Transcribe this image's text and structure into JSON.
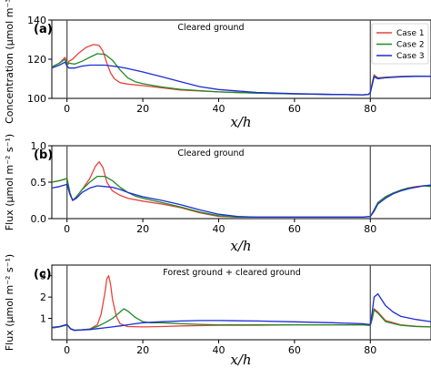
{
  "chart_data": [
    {
      "type": "line",
      "panel_label": "(a)",
      "annotation": "Cleared ground",
      "ylabel": "Concentration (μmol m⁻³)",
      "xlabel": "x/h",
      "xlim": [
        -4,
        96
      ],
      "ylim": [
        100,
        140
      ],
      "xticks": [
        0,
        20,
        40,
        60,
        80
      ],
      "xtick_labels": [
        "0",
        "20",
        "40",
        "60",
        "80"
      ],
      "yticks": [
        100,
        120,
        140
      ],
      "ytick_labels": [
        "100",
        "120",
        "140"
      ],
      "vlines": [
        0,
        80
      ],
      "legend": {
        "position": "top-right",
        "entries": [
          "Case 1",
          "Case 2",
          "Case 3"
        ]
      },
      "series": [
        {
          "name": "Case 1",
          "color": "#e8423a",
          "x": [
            -4,
            -2,
            -0.5,
            0,
            0.5,
            1.5,
            3,
            5,
            7,
            8.5,
            9.5,
            10.5,
            11.5,
            12.5,
            14,
            16,
            20,
            30,
            40,
            50,
            60,
            70,
            78,
            79.5,
            80,
            80.5,
            81,
            82,
            84,
            88,
            92,
            96
          ],
          "y": [
            116,
            118,
            121,
            117,
            119,
            120,
            123,
            126,
            127.5,
            127,
            124,
            118,
            113,
            110,
            108,
            107.3,
            106.5,
            104.3,
            103.3,
            102.7,
            102.3,
            102.0,
            101.8,
            102,
            103,
            108,
            112,
            110.5,
            110.8,
            111.2,
            111.4,
            111.3
          ]
        },
        {
          "name": "Case 2",
          "color": "#1f8a26",
          "x": [
            -4,
            -2,
            -0.5,
            0,
            0.5,
            2,
            4,
            6,
            8,
            10,
            12,
            14,
            16,
            18,
            20,
            25,
            30,
            40,
            50,
            60,
            70,
            78,
            79.5,
            80,
            80.5,
            81,
            82,
            84,
            88,
            92,
            96
          ],
          "y": [
            116,
            118,
            120,
            117,
            118,
            117.5,
            119,
            121,
            122.8,
            122.5,
            119.5,
            114.5,
            110.5,
            108.5,
            107.5,
            105.8,
            104.6,
            103.3,
            102.7,
            102.3,
            102.0,
            101.8,
            102,
            103,
            107.5,
            111.5,
            110.2,
            110.6,
            111.1,
            111.3,
            111.2
          ]
        },
        {
          "name": "Case 3",
          "color": "#1c2bd6",
          "x": [
            -4,
            -2,
            -0.5,
            0,
            0.5,
            2,
            4,
            6,
            8,
            10,
            12,
            14,
            16,
            20,
            25,
            30,
            35,
            40,
            50,
            60,
            70,
            78,
            79.5,
            80,
            80.5,
            81,
            82,
            84,
            88,
            92,
            96
          ],
          "y": [
            115.5,
            117,
            118.5,
            116.5,
            115.5,
            115.5,
            116.5,
            117,
            117,
            117,
            116.5,
            116,
            115.2,
            113.5,
            111,
            108.5,
            106,
            104.5,
            103,
            102.4,
            102.0,
            101.8,
            102,
            103,
            107,
            111,
            110,
            110.5,
            111,
            111.2,
            111.2
          ]
        }
      ]
    },
    {
      "type": "line",
      "panel_label": "(b)",
      "annotation": "Cleared ground",
      "ylabel": "Flux (μmol m⁻² s⁻¹)",
      "xlabel": "x/h",
      "xlim": [
        -4,
        96
      ],
      "ylim": [
        0,
        1
      ],
      "xticks": [
        0,
        20,
        40,
        60,
        80
      ],
      "xtick_labels": [
        "0",
        "20",
        "40",
        "60",
        "80"
      ],
      "yticks": [
        0,
        0.5,
        1.0
      ],
      "ytick_labels": [
        "0.0",
        "0.5",
        "1.0"
      ],
      "vlines": [
        0,
        80
      ],
      "series": [
        {
          "name": "Case 1",
          "color": "#e8423a",
          "x": [
            -4,
            -2,
            0,
            0.8,
            1.5,
            2.5,
            4,
            6,
            7.5,
            8.5,
            9.5,
            10.5,
            12,
            14,
            16,
            20,
            25,
            30,
            35,
            40,
            45,
            50,
            60,
            70,
            78,
            80,
            81,
            82,
            84,
            86,
            88,
            90,
            92,
            94,
            96
          ],
          "y": [
            0.5,
            0.52,
            0.55,
            0.35,
            0.25,
            0.3,
            0.4,
            0.55,
            0.72,
            0.78,
            0.7,
            0.5,
            0.38,
            0.32,
            0.28,
            0.24,
            0.2,
            0.15,
            0.08,
            0.03,
            0.02,
            0.02,
            0.02,
            0.02,
            0.02,
            0.03,
            0.12,
            0.22,
            0.3,
            0.35,
            0.39,
            0.42,
            0.44,
            0.45,
            0.45
          ]
        },
        {
          "name": "Case 2",
          "color": "#1f8a26",
          "x": [
            -4,
            -2,
            0,
            0.8,
            1.5,
            2.5,
            4,
            6,
            8,
            10,
            12,
            14,
            16,
            18,
            20,
            25,
            30,
            35,
            40,
            45,
            50,
            60,
            70,
            78,
            80,
            81,
            82,
            84,
            86,
            88,
            90,
            92,
            94,
            96
          ],
          "y": [
            0.5,
            0.52,
            0.55,
            0.35,
            0.25,
            0.3,
            0.4,
            0.5,
            0.58,
            0.58,
            0.52,
            0.43,
            0.36,
            0.31,
            0.28,
            0.22,
            0.16,
            0.09,
            0.04,
            0.02,
            0.02,
            0.02,
            0.02,
            0.02,
            0.03,
            0.12,
            0.22,
            0.3,
            0.35,
            0.39,
            0.42,
            0.43,
            0.45,
            0.44
          ]
        },
        {
          "name": "Case 3",
          "color": "#1c2bd6",
          "x": [
            -4,
            -2,
            0,
            0.8,
            1.5,
            2.5,
            4,
            6,
            8,
            10,
            12,
            14,
            16,
            18,
            20,
            25,
            30,
            35,
            40,
            45,
            50,
            60,
            70,
            78,
            80,
            81,
            82,
            84,
            86,
            88,
            90,
            92,
            94,
            96
          ],
          "y": [
            0.42,
            0.44,
            0.47,
            0.33,
            0.25,
            0.28,
            0.36,
            0.42,
            0.45,
            0.44,
            0.43,
            0.4,
            0.36,
            0.33,
            0.3,
            0.25,
            0.19,
            0.12,
            0.06,
            0.03,
            0.02,
            0.02,
            0.02,
            0.02,
            0.03,
            0.1,
            0.2,
            0.28,
            0.34,
            0.38,
            0.41,
            0.43,
            0.45,
            0.46
          ]
        }
      ]
    },
    {
      "type": "line",
      "panel_label": "(c)",
      "annotation": "Forest ground +  cleared ground",
      "ylabel": "Flux (μmol m⁻² s⁻¹)",
      "xlabel": "x/h",
      "xlim": [
        -4,
        96
      ],
      "ylim": [
        0,
        3.5
      ],
      "xticks": [
        0,
        20,
        40,
        60,
        80
      ],
      "xtick_labels": [
        "0",
        "20",
        "40",
        "60",
        "80"
      ],
      "yticks": [
        1,
        2,
        3
      ],
      "ytick_labels": [
        "1",
        "2",
        "3"
      ],
      "vlines": [
        0,
        80
      ],
      "series": [
        {
          "name": "Case 1",
          "color": "#e8423a",
          "x": [
            -4,
            -2,
            0,
            1,
            2,
            4,
            6,
            8,
            9,
            10,
            10.5,
            11,
            11.5,
            12,
            13,
            14,
            16,
            20,
            25,
            30,
            40,
            50,
            60,
            70,
            78,
            79.5,
            80,
            80.5,
            81,
            82,
            84,
            88,
            92,
            96
          ],
          "y": [
            0.55,
            0.6,
            0.7,
            0.52,
            0.45,
            0.47,
            0.5,
            0.7,
            1.2,
            2.2,
            2.85,
            3.0,
            2.6,
            1.9,
            1.1,
            0.75,
            0.62,
            0.6,
            0.62,
            0.65,
            0.68,
            0.68,
            0.7,
            0.7,
            0.7,
            0.68,
            0.68,
            1.0,
            1.45,
            1.3,
            0.9,
            0.7,
            0.63,
            0.6
          ]
        },
        {
          "name": "Case 2",
          "color": "#1f8a26",
          "x": [
            -4,
            -2,
            0,
            1,
            2,
            4,
            6,
            8,
            10,
            12,
            14,
            15,
            16,
            18,
            20,
            22,
            25,
            30,
            35,
            40,
            50,
            60,
            70,
            78,
            79.5,
            80,
            80.5,
            81,
            82,
            84,
            88,
            92,
            96
          ],
          "y": [
            0.55,
            0.6,
            0.7,
            0.52,
            0.45,
            0.47,
            0.5,
            0.62,
            0.8,
            1.0,
            1.3,
            1.45,
            1.35,
            1.05,
            0.85,
            0.8,
            0.8,
            0.75,
            0.72,
            0.7,
            0.7,
            0.7,
            0.7,
            0.7,
            0.68,
            0.68,
            1.0,
            1.4,
            1.25,
            0.85,
            0.68,
            0.62,
            0.6
          ]
        },
        {
          "name": "Case 3",
          "color": "#1c2bd6",
          "x": [
            -4,
            -2,
            0,
            1,
            2,
            4,
            6,
            8,
            10,
            12,
            14,
            16,
            18,
            20,
            25,
            30,
            35,
            40,
            50,
            60,
            70,
            78,
            79.5,
            80,
            80.5,
            81,
            82,
            84,
            86,
            88,
            92,
            96
          ],
          "y": [
            0.58,
            0.62,
            0.72,
            0.5,
            0.44,
            0.46,
            0.48,
            0.52,
            0.56,
            0.6,
            0.65,
            0.7,
            0.75,
            0.8,
            0.85,
            0.88,
            0.9,
            0.9,
            0.88,
            0.84,
            0.8,
            0.75,
            0.72,
            0.72,
            1.3,
            2.0,
            2.15,
            1.6,
            1.3,
            1.1,
            0.95,
            0.85
          ]
        }
      ]
    }
  ]
}
